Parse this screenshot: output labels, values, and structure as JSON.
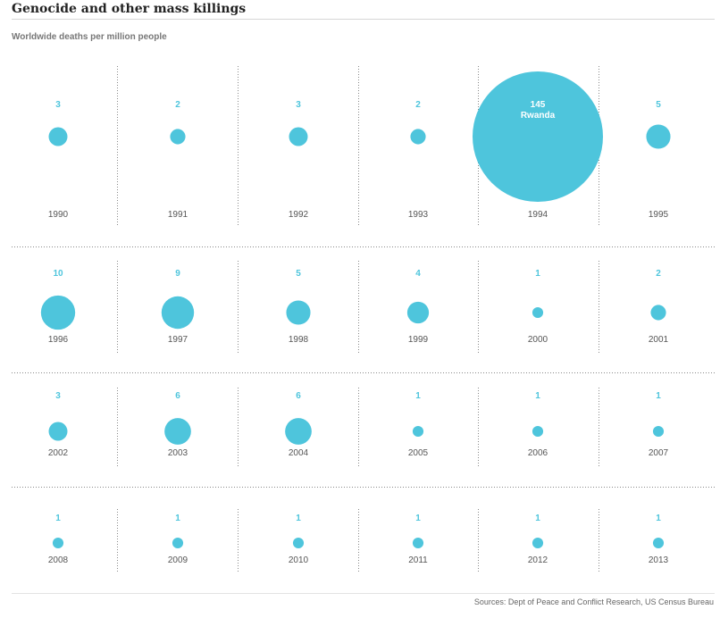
{
  "header": {
    "title": "Genocide and other mass killings",
    "subtitle": "Worldwide deaths per million people"
  },
  "footer": {
    "source": "Sources: Dept of Peace and Conflict Research, US Census Bureau"
  },
  "colors": {
    "bubble": "#4ec5dc",
    "value_label": "#4ec5dc",
    "year_label": "#555555",
    "divider": "#888888"
  },
  "chart_data": {
    "type": "bubble",
    "title": "Genocide and other mass killings",
    "subtitle": "Worldwide deaths per million people",
    "layout": "small-multiples grid, 6 columns x 4 rows",
    "grid": false,
    "points": [
      {
        "year": "1990",
        "value": 3
      },
      {
        "year": "1991",
        "value": 2
      },
      {
        "year": "1992",
        "value": 3
      },
      {
        "year": "1993",
        "value": 2
      },
      {
        "year": "1994",
        "value": 145,
        "annotation": "Rwanda"
      },
      {
        "year": "1995",
        "value": 5
      },
      {
        "year": "1996",
        "value": 10
      },
      {
        "year": "1997",
        "value": 9
      },
      {
        "year": "1998",
        "value": 5
      },
      {
        "year": "1999",
        "value": 4
      },
      {
        "year": "2000",
        "value": 1
      },
      {
        "year": "2001",
        "value": 2
      },
      {
        "year": "2002",
        "value": 3
      },
      {
        "year": "2003",
        "value": 6
      },
      {
        "year": "2004",
        "value": 6
      },
      {
        "year": "2005",
        "value": 1
      },
      {
        "year": "2006",
        "value": 1
      },
      {
        "year": "2007",
        "value": 1
      },
      {
        "year": "2008",
        "value": 1
      },
      {
        "year": "2009",
        "value": 1
      },
      {
        "year": "2010",
        "value": 1
      },
      {
        "year": "2011",
        "value": 1
      },
      {
        "year": "2012",
        "value": 1
      },
      {
        "year": "2013",
        "value": 1
      }
    ]
  }
}
